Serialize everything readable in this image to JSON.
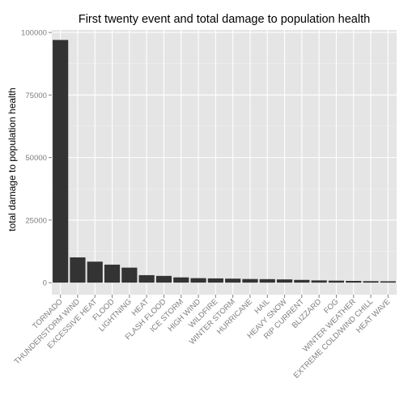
{
  "chart_data": {
    "type": "bar",
    "title": "First twenty event and total damage to population health",
    "xlabel": "",
    "ylabel": "total damage to population health",
    "ylim": [
      -4800,
      101000
    ],
    "yticks": [
      0,
      25000,
      50000,
      75000,
      100000
    ],
    "grid": true,
    "panel_background": "#e5e5e5",
    "grid_color": "#ffffff",
    "bar_color": "#333333",
    "categories": [
      "TORNADO",
      "THUNDERSTORM WIND",
      "EXCESSIVE HEAT",
      "FLOOD",
      "LIGHTNING",
      "HEAT",
      "FLASH FLOOD",
      "ICE STORM",
      "HIGH WIND",
      "WILDFIRE",
      "WINTER STORM",
      "HURRICANE",
      "HAIL",
      "HEAVY SNOW",
      "RIP CURRENT",
      "BLIZZARD",
      "FOG",
      "WINTER WEATHER",
      "EXTREME COLD/WIND CHILL",
      "HEAT WAVE"
    ],
    "values": [
      97000,
      10100,
      8400,
      7200,
      6000,
      3000,
      2700,
      2100,
      1800,
      1700,
      1600,
      1450,
      1400,
      1300,
      1100,
      900,
      800,
      700,
      600,
      550
    ]
  }
}
